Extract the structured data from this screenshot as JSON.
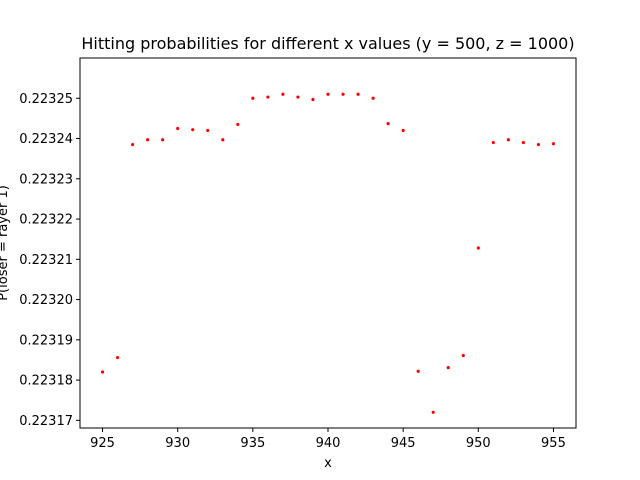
{
  "chart_data": {
    "type": "scatter",
    "title": "Hitting probabilities for different x values (y = 500, z = 1000)",
    "xlabel": "x",
    "ylabel": "P(loser = rayer 1)",
    "xlim": [
      923.5,
      956.5
    ],
    "ylim": [
      0.2231681,
      0.22326
    ],
    "xticks": [
      925,
      930,
      935,
      940,
      945,
      950,
      955
    ],
    "yticks": [
      0.22317,
      0.22318,
      0.22319,
      0.2232,
      0.22321,
      0.22322,
      0.22323,
      0.22324,
      0.22325
    ],
    "ytick_labels": [
      "0.22317",
      "0.22318",
      "0.22319",
      "0.22320",
      "0.22321",
      "0.22322",
      "0.22323",
      "0.22324",
      "0.22325"
    ],
    "grid": false,
    "color": "#ff0000",
    "series": [
      {
        "x": [
          925,
          926,
          927,
          928,
          929,
          930,
          931,
          932,
          933,
          934,
          935,
          936,
          937,
          938,
          939,
          940,
          941,
          942,
          943,
          944,
          945,
          946,
          947,
          948,
          949,
          950,
          951,
          952,
          953,
          954,
          955
        ],
        "y": [
          0.223182,
          0.2231856,
          0.2232385,
          0.2232397,
          0.2232397,
          0.2232425,
          0.2232422,
          0.223242,
          0.2232397,
          0.2232435,
          0.22325,
          0.2232503,
          0.223251,
          0.2232503,
          0.2232497,
          0.223251,
          0.223251,
          0.223251,
          0.22325,
          0.2232437,
          0.223242,
          0.2231822,
          0.223172,
          0.2231831,
          0.2231861,
          0.2232128,
          0.223239,
          0.2232397,
          0.223239,
          0.2232385,
          0.2232387
        ]
      }
    ]
  }
}
